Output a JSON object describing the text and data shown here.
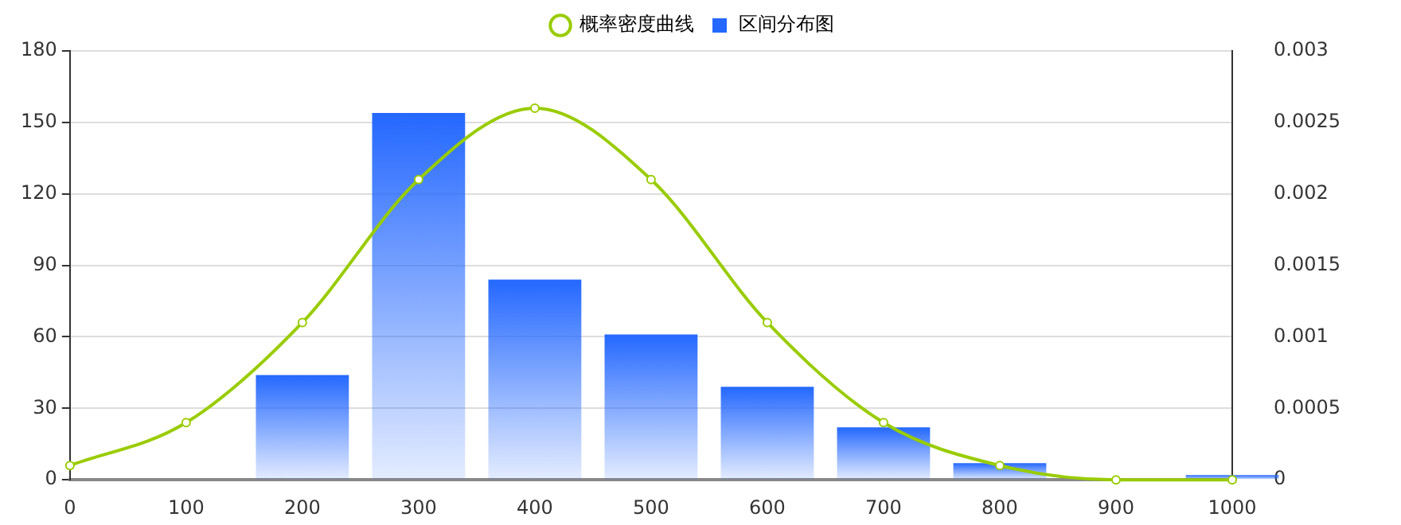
{
  "chart_data": {
    "type": "bar",
    "legend": "top",
    "grid": "y",
    "marker": "circle",
    "xlim": [
      0,
      1000
    ],
    "xticks": [
      0,
      100,
      200,
      300,
      400,
      500,
      600,
      700,
      800,
      900,
      1000
    ],
    "ylim": [
      0,
      180
    ],
    "yticks": [
      0,
      30,
      60,
      90,
      120,
      150,
      180
    ],
    "y2lim": [
      0,
      0.003
    ],
    "y2ticks": [
      0,
      0.0005,
      0.001,
      0.0015,
      0.002,
      0.0025,
      0.003
    ],
    "series": [
      {
        "name": "概率密度曲线",
        "type": "line",
        "axis": "y2",
        "color": "#99cc00",
        "x": [
          0,
          100,
          200,
          300,
          400,
          500,
          600,
          700,
          800,
          900,
          1000
        ],
        "values": [
          0.0001,
          0.0004,
          0.0011,
          0.0021,
          0.0026,
          0.0021,
          0.0011,
          0.0004,
          0.0001,
          0,
          0
        ]
      },
      {
        "name": "区间分布图",
        "color": "#2468ff",
        "x": [
          200,
          300,
          400,
          500,
          600,
          700,
          800,
          1000
        ],
        "values": [
          44,
          154,
          84,
          61,
          39,
          22,
          7,
          2
        ]
      }
    ]
  }
}
